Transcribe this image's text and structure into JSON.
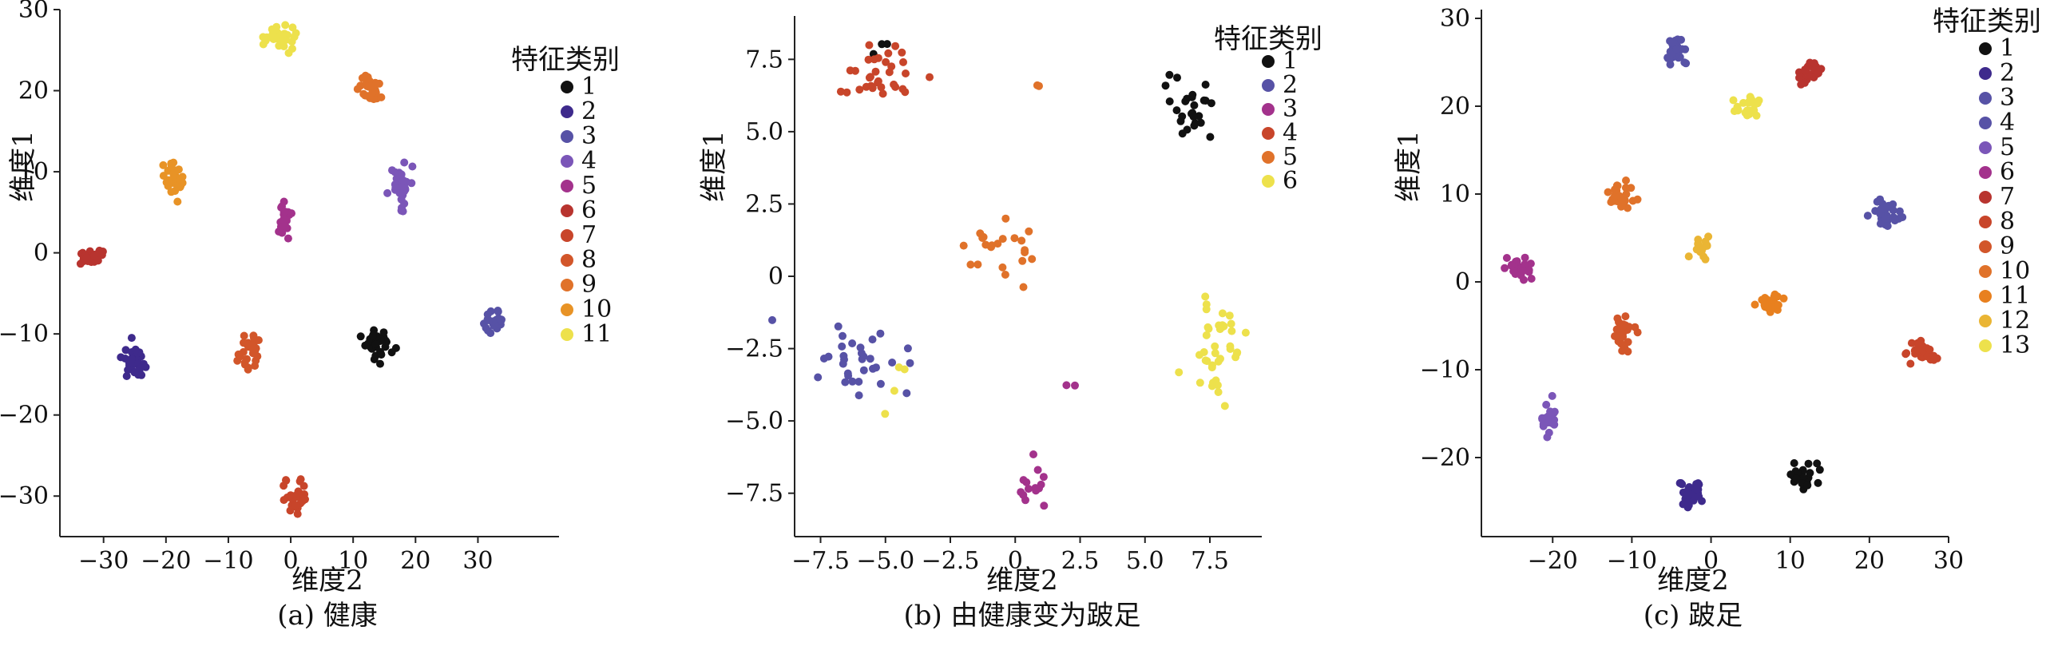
{
  "colors": {
    "black": "#111111",
    "indigo": "#3e2a8c",
    "slate": "#5752a6",
    "purple": "#6a52b0",
    "violet": "#7b56b8",
    "magenta": "#a3328c",
    "crimson": "#b8342f",
    "red": "#c8452a",
    "red_orange": "#d2562a",
    "orange": "#e0722a",
    "amber": "#e89326",
    "gold": "#eab534",
    "yellow": "#ede14c"
  },
  "chart_data": [
    {
      "type": "scatter",
      "title": "",
      "caption": "(a) 健康",
      "xlabel": "维度2",
      "ylabel": "维度1",
      "xlim": [
        -37,
        43
      ],
      "ylim": [
        -35,
        30
      ],
      "xticks": [
        -30,
        -20,
        -10,
        0,
        10,
        20,
        30
      ],
      "yticks": [
        -30,
        -20,
        -10,
        0,
        10,
        20,
        30
      ],
      "tick_labels_x": [
        "−30",
        "−20",
        "−10",
        "0",
        "10",
        "20",
        "30"
      ],
      "tick_labels_y": [
        "−30",
        "−20",
        "−10",
        "0",
        "10",
        "20",
        "30"
      ],
      "legend_title": "特征类别",
      "legend_position": "right",
      "series": [
        {
          "name": "1",
          "color": "#111111",
          "clusters": [
            {
              "x": 14,
              "y": -11.5,
              "sx": 1.1,
              "sy": 1.0,
              "n": 34
            }
          ]
        },
        {
          "name": "2",
          "color": "#3e2a8c",
          "clusters": [
            {
              "x": -25,
              "y": -13.5,
              "sx": 0.9,
              "sy": 1.0,
              "n": 30
            }
          ]
        },
        {
          "name": "3",
          "color": "#5752a6",
          "clusters": [
            {
              "x": 32.5,
              "y": -8.5,
              "sx": 0.9,
              "sy": 0.6,
              "n": 26
            }
          ]
        },
        {
          "name": "4",
          "color": "#7b56b8",
          "clusters": [
            {
              "x": 17.5,
              "y": 9,
              "sx": 0.9,
              "sy": 1.5,
              "n": 32
            }
          ]
        },
        {
          "name": "5",
          "color": "#a3328c",
          "clusters": [
            {
              "x": -1,
              "y": 4,
              "sx": 0.8,
              "sy": 1.2,
              "n": 26
            }
          ]
        },
        {
          "name": "6",
          "color": "#b8342f",
          "clusters": [
            {
              "x": -32,
              "y": -0.5,
              "sx": 1.3,
              "sy": 0.5,
              "n": 30
            }
          ]
        },
        {
          "name": "7",
          "color": "#c8452a",
          "clusters": [
            {
              "x": 1,
              "y": -30,
              "sx": 0.9,
              "sy": 1.3,
              "n": 30
            }
          ]
        },
        {
          "name": "8",
          "color": "#d2562a",
          "clusters": [
            {
              "x": -6.5,
              "y": -12,
              "sx": 0.9,
              "sy": 1.3,
              "n": 28
            }
          ]
        },
        {
          "name": "9",
          "color": "#e0722a",
          "clusters": [
            {
              "x": 12.5,
              "y": 20.5,
              "sx": 1.0,
              "sy": 0.9,
              "n": 26
            }
          ]
        },
        {
          "name": "10",
          "color": "#e89326",
          "clusters": [
            {
              "x": -19,
              "y": 9,
              "sx": 0.9,
              "sy": 1.1,
              "n": 30
            }
          ]
        },
        {
          "name": "11",
          "color": "#ede14c",
          "clusters": [
            {
              "x": -2,
              "y": 26.5,
              "sx": 1.4,
              "sy": 0.7,
              "n": 32
            }
          ]
        }
      ]
    },
    {
      "type": "scatter",
      "title": "",
      "caption": "(b) 由健康变为跛足",
      "xlabel": "维度2",
      "ylabel": "维度1",
      "xlim": [
        -8.5,
        9.5
      ],
      "ylim": [
        -9,
        9
      ],
      "xticks": [
        -7.5,
        -5.0,
        -2.5,
        0,
        2.5,
        5.0,
        7.5
      ],
      "yticks": [
        -7.5,
        -5.0,
        -2.5,
        0,
        2.5,
        5.0,
        7.5
      ],
      "tick_labels_x": [
        "−7.5",
        "−5.0",
        "−2.5",
        "0",
        "2.5",
        "5.0",
        "7.5"
      ],
      "tick_labels_y": [
        "−7.5",
        "−5.0",
        "−2.5",
        "0",
        "2.5",
        "5.0",
        "7.5"
      ],
      "legend_title": "特征类别",
      "legend_position": "top-right",
      "series": [
        {
          "name": "1",
          "color": "#111111",
          "clusters": [
            {
              "x": 6.7,
              "y": 5.6,
              "sx": 0.6,
              "sy": 0.6,
              "n": 26
            },
            {
              "x": -5.2,
              "y": 7.9,
              "sx": 0.2,
              "sy": 0.1,
              "n": 3
            }
          ]
        },
        {
          "name": "2",
          "color": "#5752a6",
          "clusters": [
            {
              "x": -6.3,
              "y": -3.1,
              "sx": 1.1,
              "sy": 0.6,
              "n": 32
            }
          ]
        },
        {
          "name": "3",
          "color": "#a3328c",
          "clusters": [
            {
              "x": 0.3,
              "y": -7.4,
              "sx": 0.35,
              "sy": 0.5,
              "n": 14
            },
            {
              "x": 2.2,
              "y": -3.8,
              "sx": 0.2,
              "sy": 0.1,
              "n": 2
            }
          ]
        },
        {
          "name": "4",
          "color": "#c8452a",
          "clusters": [
            {
              "x": -5.0,
              "y": 7.0,
              "sx": 0.7,
              "sy": 0.5,
              "n": 32
            }
          ]
        },
        {
          "name": "5",
          "color": "#e0722a",
          "clusters": [
            {
              "x": -0.5,
              "y": 1.0,
              "sx": 0.6,
              "sy": 0.7,
              "n": 22
            },
            {
              "x": 0.9,
              "y": 6.6,
              "sx": 0.05,
              "sy": 0.05,
              "n": 2
            }
          ]
        },
        {
          "name": "6",
          "color": "#ede14c",
          "clusters": [
            {
              "x": 7.6,
              "y": -2.7,
              "sx": 0.5,
              "sy": 1.0,
              "n": 40
            },
            {
              "x": -4.7,
              "y": -3.8,
              "sx": 0.25,
              "sy": 0.3,
              "n": 4
            }
          ]
        }
      ]
    },
    {
      "type": "scatter",
      "title": "",
      "caption": "(c) 跛足",
      "xlabel": "维度2",
      "ylabel": "维度1",
      "xlim": [
        -29,
        30
      ],
      "ylim": [
        -29,
        31
      ],
      "xticks": [
        -20,
        -10,
        0,
        10,
        20,
        30
      ],
      "yticks": [
        -20,
        -10,
        0,
        10,
        20,
        30
      ],
      "tick_labels_x": [
        "−20",
        "−10",
        "0",
        "10",
        "20",
        "30"
      ],
      "tick_labels_y": [
        "−20",
        "−10",
        "0",
        "10",
        "20",
        "30"
      ],
      "legend_title": "特征类别",
      "legend_position": "right",
      "series": [
        {
          "name": "1",
          "color": "#111111",
          "clusters": [
            {
              "x": 11.5,
              "y": -22,
              "sx": 0.9,
              "sy": 0.7,
              "n": 32
            }
          ]
        },
        {
          "name": "2",
          "color": "#3e2a8c",
          "clusters": [
            {
              "x": -2.5,
              "y": -24,
              "sx": 0.8,
              "sy": 0.9,
              "n": 28
            }
          ]
        },
        {
          "name": "3",
          "color": "#5752a6",
          "clusters": [
            {
              "x": -4.5,
              "y": 26,
              "sx": 0.7,
              "sy": 0.9,
              "n": 26
            }
          ]
        },
        {
          "name": "4",
          "color": "#5752a6",
          "clusters": [
            {
              "x": 22,
              "y": 7.5,
              "sx": 0.9,
              "sy": 0.9,
              "n": 30
            }
          ]
        },
        {
          "name": "5",
          "color": "#7b56b8",
          "clusters": [
            {
              "x": -20.5,
              "y": -15.5,
              "sx": 0.6,
              "sy": 1.0,
              "n": 26
            }
          ]
        },
        {
          "name": "6",
          "color": "#a3328c",
          "clusters": [
            {
              "x": -24,
              "y": 1.5,
              "sx": 0.9,
              "sy": 0.8,
              "n": 30
            }
          ]
        },
        {
          "name": "7",
          "color": "#b8342f",
          "clusters": [
            {
              "x": 12.5,
              "y": 24,
              "sx": 0.7,
              "sy": 0.6,
              "n": 26
            }
          ]
        },
        {
          "name": "8",
          "color": "#c8452a",
          "clusters": [
            {
              "x": 26.5,
              "y": -8,
              "sx": 0.9,
              "sy": 0.7,
              "n": 30
            }
          ]
        },
        {
          "name": "9",
          "color": "#d2562a",
          "clusters": [
            {
              "x": -11,
              "y": -5.5,
              "sx": 0.8,
              "sy": 0.9,
              "n": 28
            }
          ]
        },
        {
          "name": "10",
          "color": "#e0722a",
          "clusters": [
            {
              "x": -11.5,
              "y": 9.5,
              "sx": 0.9,
              "sy": 0.8,
              "n": 28
            }
          ]
        },
        {
          "name": "11",
          "color": "#e8801f",
          "clusters": [
            {
              "x": 7.5,
              "y": -2.5,
              "sx": 0.8,
              "sy": 0.6,
              "n": 26
            }
          ]
        },
        {
          "name": "12",
          "color": "#eab534",
          "clusters": [
            {
              "x": -1,
              "y": 4,
              "sx": 0.6,
              "sy": 0.7,
              "n": 18
            }
          ]
        },
        {
          "name": "13",
          "color": "#ede14c",
          "clusters": [
            {
              "x": 4.5,
              "y": 20,
              "sx": 1.2,
              "sy": 0.6,
              "n": 24
            }
          ]
        }
      ]
    }
  ]
}
